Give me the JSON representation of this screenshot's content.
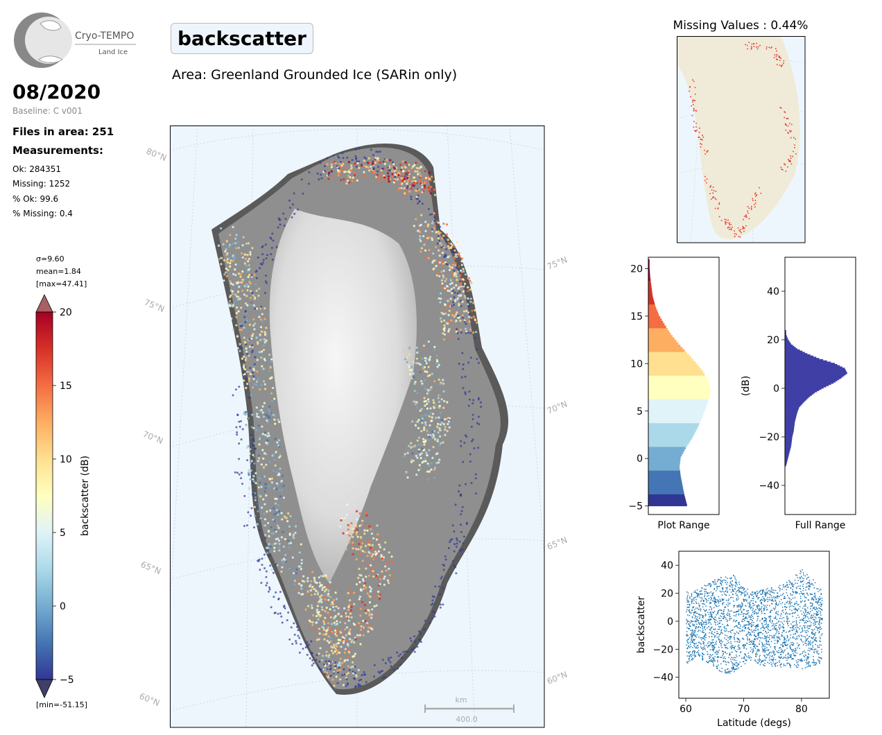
{
  "logo": {
    "name": "Cryo-TEMPO",
    "subtitle": "Land Ice"
  },
  "header": {
    "period": "08/2020",
    "baseline": "Baseline: C v001",
    "files_in_area": "Files in area: 251",
    "measurements_title": "Measurements:",
    "stats": [
      "Ok: 284351",
      "Missing: 1252",
      "% Ok: 99.6",
      "% Missing: 0.4"
    ],
    "parameter": "backscatter",
    "area": "Area: Greenland Grounded Ice (SARin only)"
  },
  "colorbar": {
    "label": "backscatter (dB)",
    "sigma": "σ=9.60",
    "mean": "mean=1.84",
    "max": "[max=47.41]",
    "min": "[min=-51.15]",
    "ticks": [
      -5,
      0,
      5,
      10,
      15,
      20
    ],
    "range": [
      -5,
      20
    ],
    "colors": [
      "#313695",
      "#4575b4",
      "#74add1",
      "#abd9e9",
      "#e0f3f8",
      "#ffffbf",
      "#fee090",
      "#fdae61",
      "#f46d43",
      "#d73027",
      "#a50026"
    ]
  },
  "main_map": {
    "left_lat_labels": [
      "80°N",
      "75°N",
      "70°N",
      "65°N",
      "60°N"
    ],
    "right_lat_labels": [
      "75°N",
      "70°N",
      "65°N",
      "60°N"
    ],
    "scale_unit": "km",
    "scale_value": "400.0",
    "ocean_color": "#eef6fd"
  },
  "missing_map": {
    "title": "Missing Values : 0.44%",
    "land_color": "#efebd8",
    "missing_color": "#e8352e"
  },
  "chart_data": [
    {
      "type": "bar",
      "name": "plot-range-histogram",
      "orientation": "horizontal",
      "xlabel": "Plot Range",
      "ylim": [
        -5.9,
        21.2
      ],
      "yticks": [
        -5,
        0,
        5,
        10,
        15,
        20
      ],
      "bins": [
        {
          "y": -5,
          "count": 0.62
        },
        {
          "y": -4,
          "count": 0.58
        },
        {
          "y": -3,
          "count": 0.55
        },
        {
          "y": -2,
          "count": 0.52
        },
        {
          "y": -1,
          "count": 0.5
        },
        {
          "y": 0,
          "count": 0.52
        },
        {
          "y": 1,
          "count": 0.6
        },
        {
          "y": 2,
          "count": 0.7
        },
        {
          "y": 3,
          "count": 0.78
        },
        {
          "y": 4,
          "count": 0.85
        },
        {
          "y": 5,
          "count": 0.91
        },
        {
          "y": 6,
          "count": 0.96
        },
        {
          "y": 7,
          "count": 1.0
        },
        {
          "y": 8,
          "count": 0.97
        },
        {
          "y": 9,
          "count": 0.88
        },
        {
          "y": 10,
          "count": 0.76
        },
        {
          "y": 11,
          "count": 0.62
        },
        {
          "y": 12,
          "count": 0.48
        },
        {
          "y": 13,
          "count": 0.36
        },
        {
          "y": 14,
          "count": 0.26
        },
        {
          "y": 15,
          "count": 0.17
        },
        {
          "y": 16,
          "count": 0.11
        },
        {
          "y": 17,
          "count": 0.07
        },
        {
          "y": 18,
          "count": 0.05
        },
        {
          "y": 19,
          "count": 0.03
        },
        {
          "y": 20,
          "count": 0.02
        }
      ]
    },
    {
      "type": "bar",
      "name": "full-range-histogram",
      "orientation": "horizontal",
      "xlabel": "Full Range",
      "ylabel": "(dB)",
      "ylim": [
        -52,
        54
      ],
      "yticks": [
        -40,
        -20,
        0,
        20,
        40
      ],
      "color": "#3f3fa6",
      "bins": [
        {
          "y": -32,
          "count": 0.02
        },
        {
          "y": -30,
          "count": 0.04
        },
        {
          "y": -28,
          "count": 0.06
        },
        {
          "y": -26,
          "count": 0.08
        },
        {
          "y": -24,
          "count": 0.1
        },
        {
          "y": -22,
          "count": 0.11
        },
        {
          "y": -20,
          "count": 0.12
        },
        {
          "y": -18,
          "count": 0.14
        },
        {
          "y": -16,
          "count": 0.15
        },
        {
          "y": -14,
          "count": 0.16
        },
        {
          "y": -12,
          "count": 0.18
        },
        {
          "y": -10,
          "count": 0.2
        },
        {
          "y": -8,
          "count": 0.23
        },
        {
          "y": -6,
          "count": 0.3
        },
        {
          "y": -4,
          "count": 0.38
        },
        {
          "y": -2,
          "count": 0.48
        },
        {
          "y": 0,
          "count": 0.62
        },
        {
          "y": 2,
          "count": 0.78
        },
        {
          "y": 4,
          "count": 0.9
        },
        {
          "y": 6,
          "count": 1.0
        },
        {
          "y": 8,
          "count": 0.96
        },
        {
          "y": 10,
          "count": 0.8
        },
        {
          "y": 12,
          "count": 0.55
        },
        {
          "y": 14,
          "count": 0.36
        },
        {
          "y": 16,
          "count": 0.2
        },
        {
          "y": 18,
          "count": 0.1
        },
        {
          "y": 20,
          "count": 0.05
        },
        {
          "y": 22,
          "count": 0.02
        }
      ]
    },
    {
      "type": "scatter",
      "name": "backscatter-vs-latitude",
      "xlabel": "Latitude (degs)",
      "ylabel": "backscatter",
      "xlim": [
        58.8,
        84.8
      ],
      "ylim": [
        -55,
        50
      ],
      "xticks": [
        60,
        70,
        80
      ],
      "yticks": [
        -40,
        -20,
        0,
        20,
        40
      ],
      "color": "#1f77b4",
      "x_range": [
        60,
        83.5
      ],
      "y_envelope": [
        {
          "x": 60,
          "low": -30,
          "high": 22
        },
        {
          "x": 62,
          "low": -26,
          "high": 24
        },
        {
          "x": 64,
          "low": -30,
          "high": 28
        },
        {
          "x": 66,
          "low": -36,
          "high": 32
        },
        {
          "x": 68,
          "low": -38,
          "high": 34
        },
        {
          "x": 70,
          "low": -30,
          "high": 24
        },
        {
          "x": 72,
          "low": -30,
          "high": 22
        },
        {
          "x": 74,
          "low": -32,
          "high": 24
        },
        {
          "x": 76,
          "low": -32,
          "high": 26
        },
        {
          "x": 78,
          "low": -34,
          "high": 30
        },
        {
          "x": 80,
          "low": -34,
          "high": 38
        },
        {
          "x": 82,
          "low": -32,
          "high": 30
        },
        {
          "x": 83.5,
          "low": -30,
          "high": 22
        }
      ]
    }
  ]
}
